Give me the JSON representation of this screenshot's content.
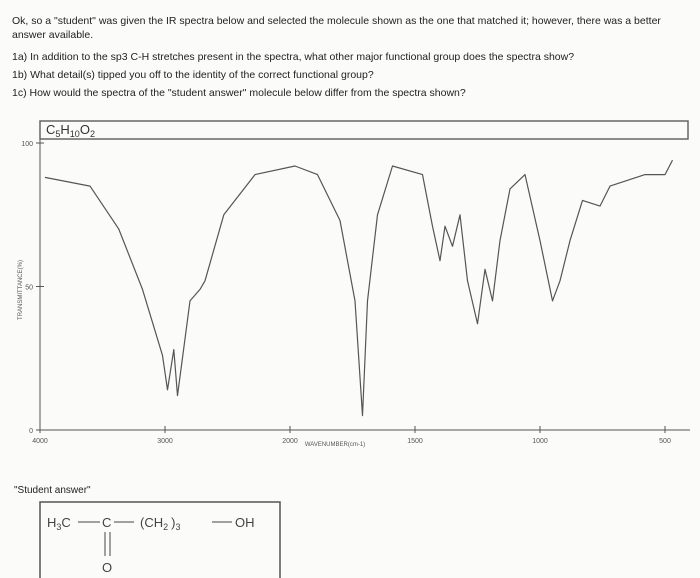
{
  "intro": "Ok, so a \"student\" was given the IR spectra below and selected the molecule shown as the one that matched it; however, there was a better answer available.",
  "questions": [
    "1a) In addition to the sp3 C-H stretches present in the spectra, what other major functional group does the spectra show?",
    "1b) What detail(s) tipped you off to the identity of the correct functional group?",
    "1c) How would the spectra of the \"student answer\" molecule below differ from the spectra shown?"
  ],
  "formula": [
    "C",
    "5",
    "H",
    "10",
    "O",
    "2"
  ],
  "student_label": "\"Student answer\"",
  "structure": {
    "methyl": "H",
    "methyl_sub": "3",
    "methyl_c": "C",
    "carbonyl_c": "C",
    "chain_open": "(CH",
    "chain_sub": "2",
    "chain_close": ")",
    "chain_count": "3",
    "end": "OH",
    "oxygen": "O"
  },
  "chart_data": {
    "type": "line",
    "xlabel": "WAVENUMBER(cm-1)",
    "ylabel": "TRANSMITTANCE(%)",
    "xlim": [
      4000,
      400
    ],
    "ylim": [
      0,
      100
    ],
    "xticks": [
      4000,
      3000,
      2000,
      1500,
      1000,
      500
    ],
    "yticks": [
      0,
      50,
      100
    ],
    "color": "#555555",
    "x": [
      3960,
      3600,
      3370,
      3180,
      3020,
      2980,
      2930,
      2900,
      2800,
      2720,
      2680,
      2530,
      2280,
      1980,
      1890,
      1800,
      1740,
      1710,
      1690,
      1650,
      1590,
      1470,
      1430,
      1400,
      1380,
      1350,
      1320,
      1290,
      1250,
      1220,
      1190,
      1160,
      1120,
      1060,
      1000,
      950,
      920,
      880,
      830,
      760,
      720,
      650,
      580,
      500,
      470
    ],
    "values": [
      88,
      85,
      70,
      49,
      26,
      14,
      28,
      12,
      45,
      49,
      52,
      75,
      89,
      92,
      89,
      73,
      45,
      5,
      45,
      75,
      92,
      89,
      71,
      59,
      71,
      64,
      75,
      52,
      37,
      56,
      45,
      66,
      84,
      89,
      66,
      45,
      52,
      66,
      80,
      78,
      85,
      87,
      89,
      89,
      94
    ]
  }
}
